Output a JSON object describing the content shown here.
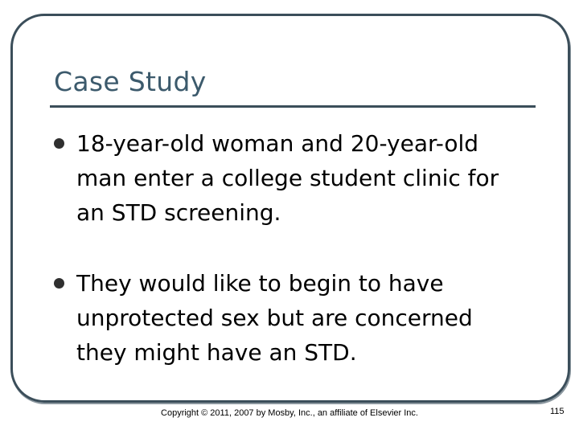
{
  "slide": {
    "title": "Case Study",
    "bullets": [
      "18-year-old woman and 20-year-old man enter a college student clinic for an STD screening.",
      "They would like to begin to have unprotected sex but are concerned they might have an STD."
    ],
    "footer": {
      "copyright": "Copyright © 2011, 2007 by Mosby, Inc., an affiliate of Elsevier Inc.",
      "page_number": "115"
    }
  }
}
